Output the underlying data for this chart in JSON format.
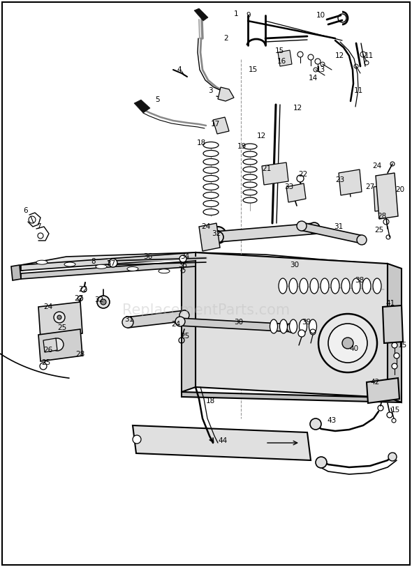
{
  "bg": "#ffffff",
  "lc": "#000000",
  "wm_text": "ReplacementParts.com",
  "wm_color": "#bbbbbb",
  "fig_w": 5.9,
  "fig_h": 8.13,
  "dpi": 100
}
